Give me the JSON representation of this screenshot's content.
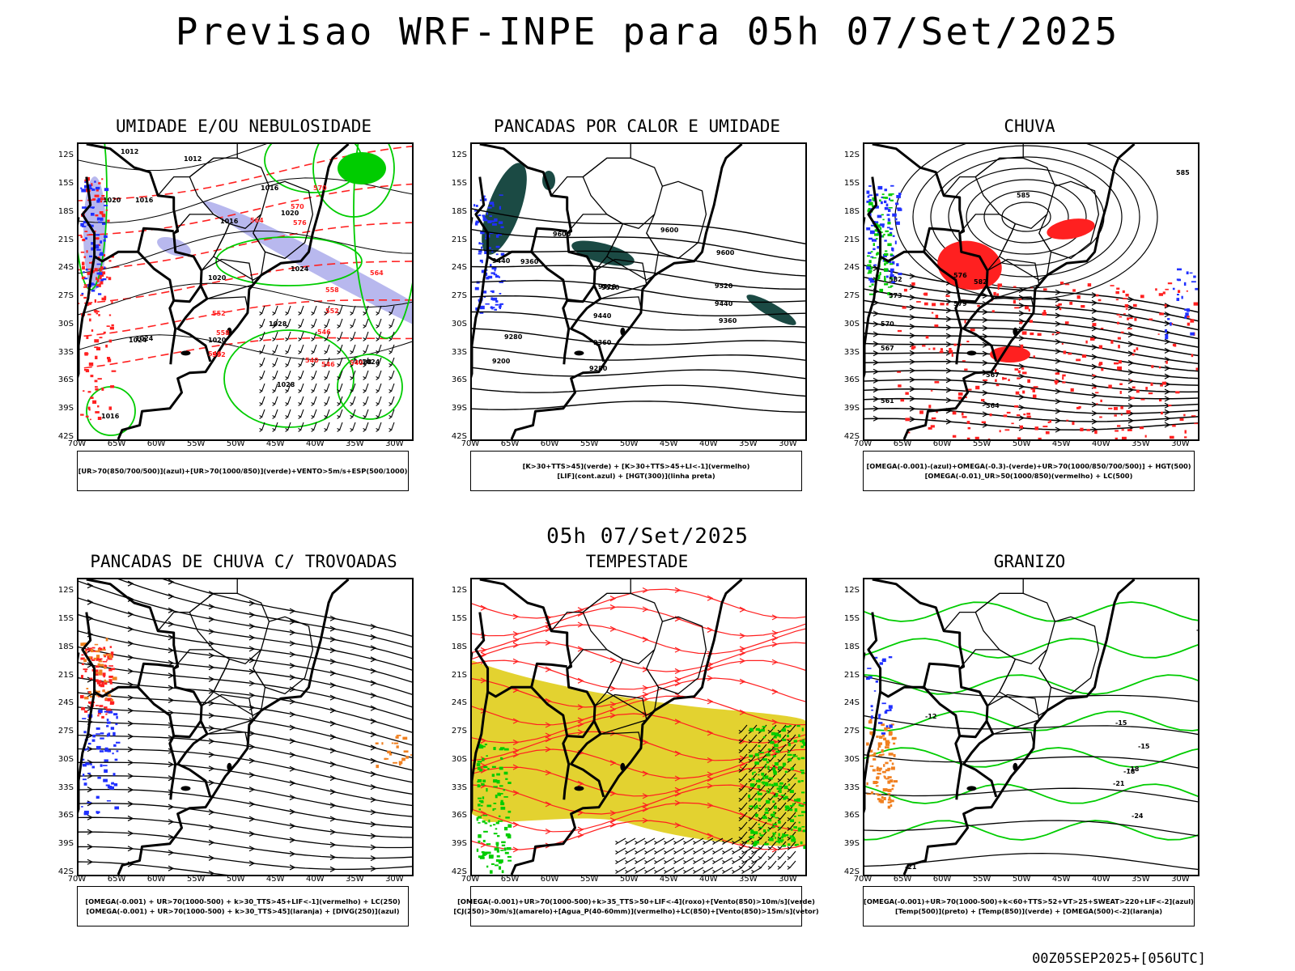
{
  "header": {
    "title": "Previsao WRF-INPE  para 05h 07/Set/2025"
  },
  "mid_title": "05h 07/Set/2025",
  "footer": "00Z05SEP2025+[056UTC]",
  "axes": {
    "lat_labels": [
      "12S",
      "15S",
      "18S",
      "21S",
      "24S",
      "27S",
      "30S",
      "33S",
      "36S",
      "39S",
      "42S"
    ],
    "lon_labels": [
      "70W",
      "65W",
      "60W",
      "55W",
      "50W",
      "45W",
      "40W",
      "35W",
      "30W"
    ]
  },
  "colors": {
    "rh_blue": "#b8b8ee",
    "green": "#00cc00",
    "red": "#ff2020",
    "blue": "#2030ff",
    "teal": "#1b4a44",
    "yellow": "#e3d230",
    "orange": "#f08020",
    "black": "#000000"
  },
  "panels": [
    {
      "id": "umidade",
      "title": "UMIDADE E/OU NEBULOSIDADE",
      "legend": [
        "[UR>70(850/700/500)](azul)+[UR>70(1000/850)](verde)+VENTO>5m/s+ESP(500/1000)"
      ],
      "labels": [
        "1012",
        "1012",
        "1016",
        "1020",
        "1016",
        "1020",
        "1016",
        "1024",
        "1020",
        "1024",
        "1028",
        "1020",
        "1024",
        "1028",
        "1028",
        "1016",
        "1024",
        "552",
        "558",
        "552",
        "546",
        "546",
        "540",
        "564",
        "570",
        "570",
        "576",
        "564",
        "558",
        "552",
        "546",
        "540"
      ]
    },
    {
      "id": "pancadas",
      "title": "PANCADAS POR CALOR E UMIDADE",
      "legend": [
        "[K>30+TTS>45](verde) + [K>30+TTS>45+LI<-1](vermelho)",
        "[LIF](cont.azul) + [HGT(300)](linha preta)"
      ],
      "labels": [
        "9600",
        "9600",
        "9520",
        "9440",
        "9520",
        "9360",
        "9280",
        "9200",
        "9600",
        "9520",
        "9440",
        "9360",
        "9440",
        "9360",
        "9280"
      ]
    },
    {
      "id": "chuva",
      "title": "CHUVA",
      "legend": [
        "[OMEGA(-0.001)-(azul)+OMEGA(-0.3)-(verde)+UR>70(1000/850/700/500)] + HGT(500)",
        "[OMEGA(-0.01)_UR>50(1000/850)(vermelho) + LC(500)"
      ],
      "labels": [
        "585",
        "585",
        "582",
        "579",
        "576",
        "573",
        "570",
        "567",
        "561",
        "564",
        "567",
        "582",
        "579",
        "576",
        "573",
        "582"
      ]
    },
    {
      "id": "trovoadas",
      "title": "PANCADAS DE CHUVA C/ TROVOADAS",
      "legend": [
        "[OMEGA(-0.001) + UR>70(1000-500) + k>30_TTS>45+LIF<-1](vermelho) + LC(250)",
        "[OMEGA(-0.001) + UR>70(1000-500) + k>30_TTS>45](laranja) + [DIVG(250)](azul)"
      ],
      "labels": []
    },
    {
      "id": "tempestade",
      "title": "TEMPESTADE",
      "legend": [
        "[OMEGA(-0.001)+UR>70(1000-500)+k>35_TTS>50+LIF<-4](roxo)+[Vento(850)>10m/s](verde)",
        "[CJ(250)>30m/s](amarelo)+[Agua_P(40-60mm)](vermelho)+LC(850)+[Vento(850)>15m/s](vetor)"
      ],
      "labels": []
    },
    {
      "id": "granizo",
      "title": "GRANIZO",
      "legend": [
        "[OMEGA(-0.001)+UR>70(1000-500)+k<60+TTS>52+VT>25+SWEAT>220+LIF<-2](azul)",
        "[Temp(500)](preto) + [Temp(850)](verde) + [OMEGA(500)<-2](laranja)"
      ],
      "labels": [
        "-12",
        "-12",
        "-15",
        "-18",
        "-21",
        "-24",
        "-21",
        "-12",
        "-15",
        "-18"
      ]
    }
  ]
}
